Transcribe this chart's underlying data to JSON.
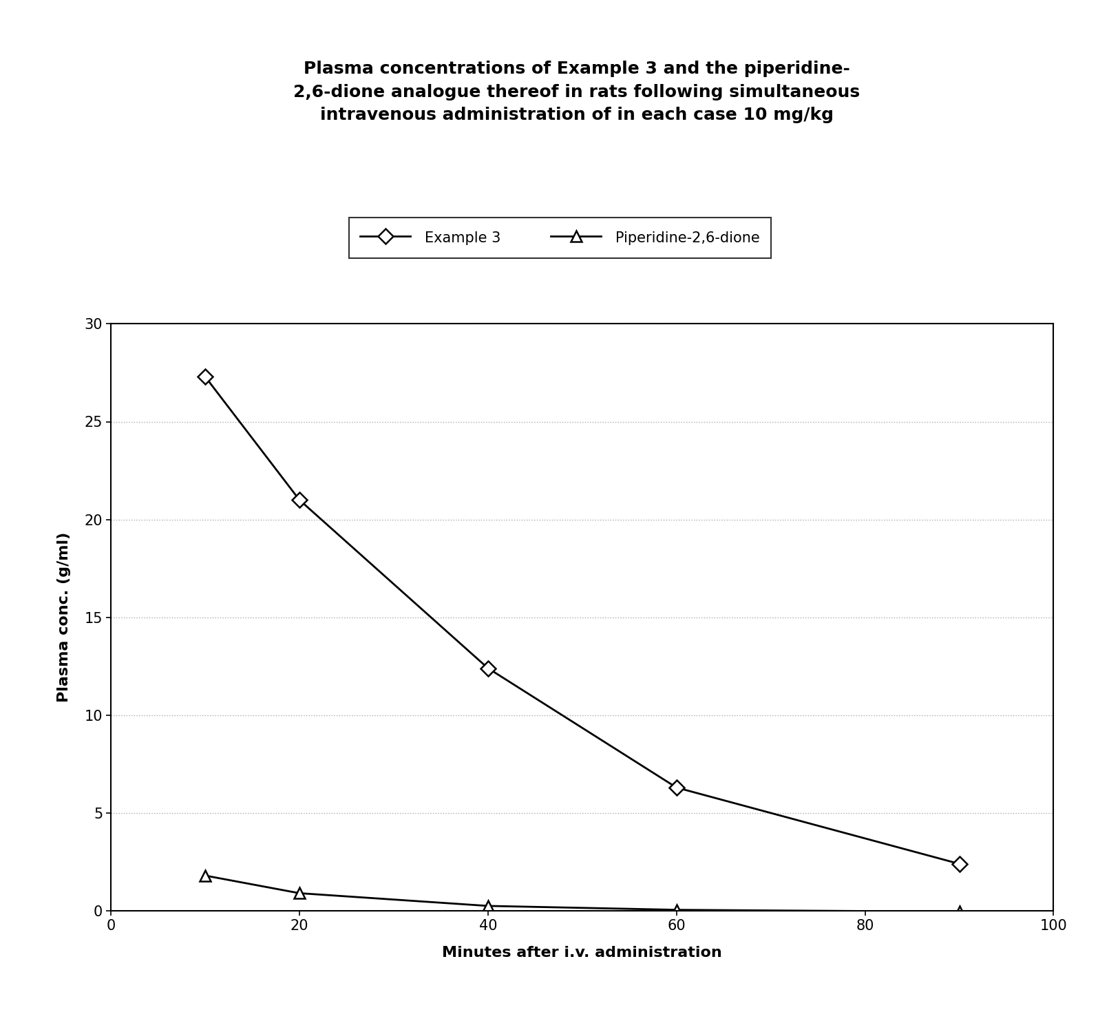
{
  "title_lines": [
    "Plasma concentrations of Example 3 and the piperidine-",
    "2,6-dione analogue thereof in rats following simultaneous",
    "intravenous administration of in each case 10 mg/kg"
  ],
  "xlabel": "Minutes after i.v. administration",
  "ylabel": "Plasma conc. (g/ml)",
  "xlim": [
    0,
    100
  ],
  "ylim": [
    0,
    30
  ],
  "xticks": [
    0,
    20,
    40,
    60,
    80,
    100
  ],
  "yticks": [
    0,
    5,
    10,
    15,
    20,
    25,
    30
  ],
  "series": [
    {
      "label": "Example 3",
      "x": [
        10,
        20,
        40,
        60,
        90
      ],
      "y": [
        27.3,
        21.0,
        12.4,
        6.3,
        2.4
      ],
      "color": "#000000",
      "marker": "D",
      "markersize": 11,
      "linestyle": "-",
      "linewidth": 2.0
    },
    {
      "label": "Piperidine-2,6-dione",
      "x": [
        10,
        20,
        40,
        60,
        90
      ],
      "y": [
        1.8,
        0.9,
        0.25,
        0.05,
        -0.05
      ],
      "color": "#000000",
      "marker": "^",
      "markersize": 11,
      "linestyle": "-",
      "linewidth": 2.0
    }
  ],
  "grid_color": "#aaaaaa",
  "background_color": "#ffffff",
  "title_fontsize": 18,
  "axis_label_fontsize": 16,
  "tick_fontsize": 15,
  "legend_fontsize": 15
}
